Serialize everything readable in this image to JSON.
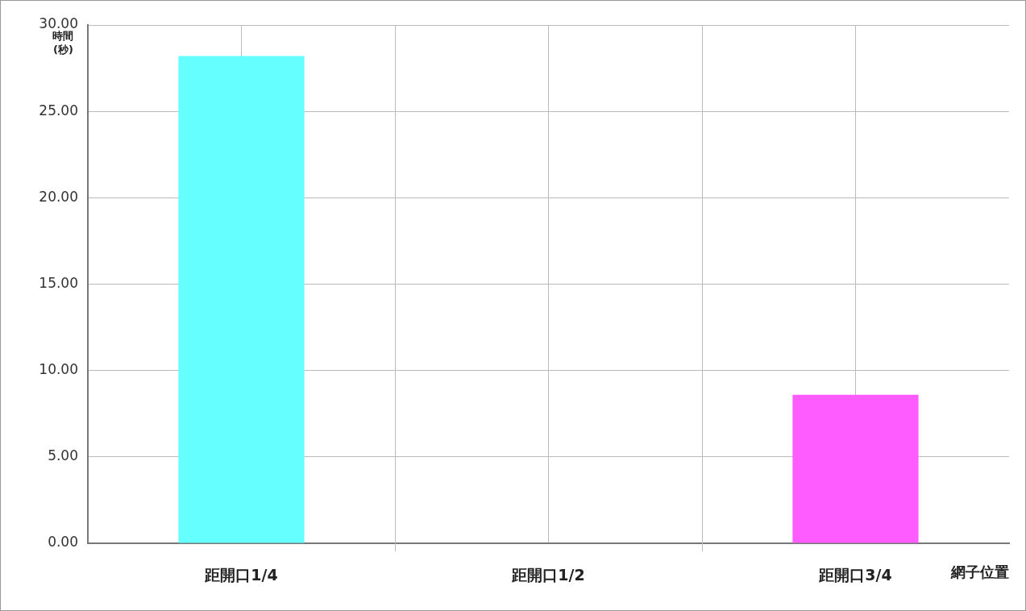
{
  "chart_data": {
    "type": "bar",
    "xlabel": "網子位置",
    "ylabel": "時間\n(秒)",
    "categories": [
      "距開口1/4",
      "距開口1/2",
      "距開口3/4"
    ],
    "values": [
      28.2,
      0,
      8.6
    ],
    "colors": [
      "#66ffff",
      "#ff66ff",
      "#ff5cff"
    ],
    "ylim": [
      0,
      30
    ],
    "yticks": [
      {
        "value": 0,
        "label": "0.00"
      },
      {
        "value": 5,
        "label": "5.00"
      },
      {
        "value": 10,
        "label": "10.00"
      },
      {
        "value": 15,
        "label": "15.00"
      },
      {
        "value": 20,
        "label": "20.00"
      },
      {
        "value": 25,
        "label": "25.00"
      },
      {
        "value": 30,
        "label": "30.00"
      }
    ],
    "grid": true,
    "legend": false
  }
}
